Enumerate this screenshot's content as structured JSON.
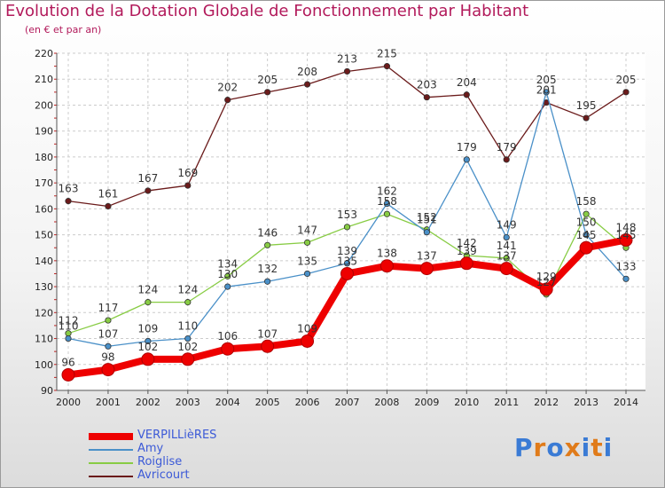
{
  "title": "Evolution de la Dotation Globale de Fonctionnement par Habitant",
  "subtitle": "(en € et par an)",
  "logo": {
    "text": "Proxiti"
  },
  "chart_data": {
    "type": "line",
    "x": [
      2000,
      2001,
      2002,
      2003,
      2004,
      2005,
      2006,
      2007,
      2008,
      2009,
      2010,
      2011,
      2012,
      2013,
      2014
    ],
    "ylim": [
      90,
      220
    ],
    "yticks": [
      90,
      100,
      110,
      120,
      130,
      140,
      150,
      160,
      170,
      180,
      190,
      200,
      210,
      220
    ],
    "grid": true,
    "legend": "bottom-left",
    "series": [
      {
        "name": "VERPILLièRES",
        "color": "#ee0000",
        "values": [
          96,
          98,
          102,
          102,
          106,
          107,
          109,
          135,
          138,
          137,
          139,
          137,
          129,
          145,
          148
        ]
      },
      {
        "name": "Amy",
        "color": "#4a90c8",
        "values": [
          110,
          107,
          109,
          110,
          130,
          132,
          135,
          139,
          162,
          151,
          179,
          149,
          205,
          150,
          133
        ]
      },
      {
        "name": "Roiglise",
        "color": "#88cc44",
        "values": [
          112,
          117,
          124,
          124,
          134,
          146,
          147,
          153,
          158,
          152,
          142,
          141,
          127,
          158,
          145
        ]
      },
      {
        "name": "Avricourt",
        "color": "#6b1b1b",
        "values": [
          163,
          161,
          167,
          169,
          202,
          205,
          208,
          213,
          215,
          203,
          204,
          179,
          201,
          195,
          205
        ]
      }
    ],
    "data_labels": {
      "VERPILLièRES": [
        "96",
        "98",
        "102",
        "102",
        "106",
        "107",
        "109",
        "135",
        "138",
        "137",
        "139",
        "137",
        "129",
        "145",
        "148"
      ],
      "Amy": [
        "110",
        "107",
        "109",
        "110",
        "130",
        "132",
        "135",
        "139",
        "162",
        "151",
        "179",
        "149",
        "205",
        "150",
        "133"
      ],
      "Roiglise": [
        "112",
        "117",
        "124",
        "124",
        "134",
        "146",
        "147",
        "153",
        "158",
        "152",
        "142",
        "141",
        "127",
        "158",
        "145"
      ],
      "Avricourt": [
        "163",
        "161",
        "167",
        "169",
        "202",
        "205",
        "208",
        "213",
        "215",
        "203",
        "204",
        "179",
        "201",
        "195",
        "205"
      ]
    }
  }
}
